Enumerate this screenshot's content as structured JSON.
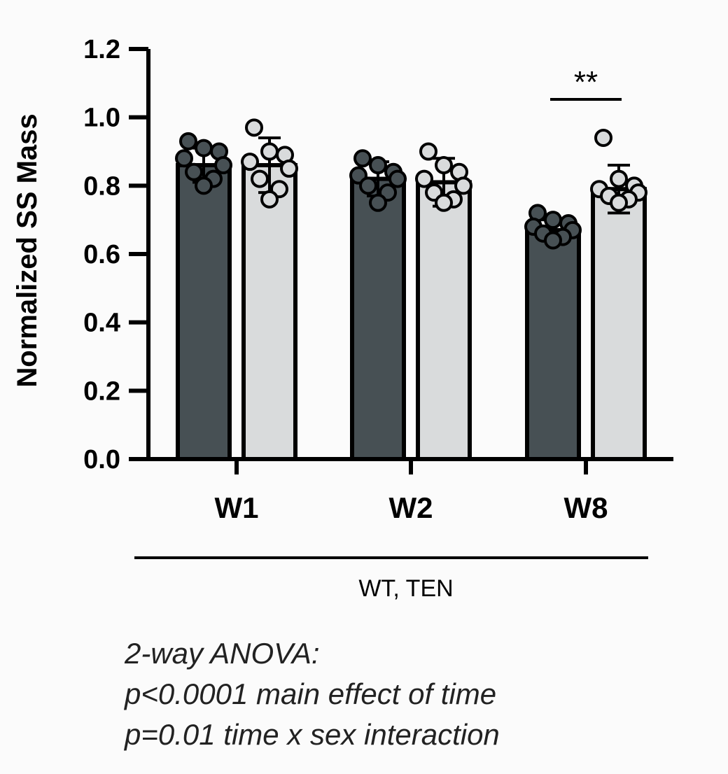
{
  "chart_data": {
    "type": "bar",
    "ylabel": "Normalized SS Mass",
    "xlabel": "",
    "ylim": [
      0,
      1.2
    ],
    "yticks": [
      "0.0",
      "0.2",
      "0.4",
      "0.6",
      "0.8",
      "1.0",
      "1.2"
    ],
    "categories": [
      "W1",
      "W2",
      "W8"
    ],
    "group_label": "WT, TEN",
    "colors": {
      "dark": "#475054",
      "light": "#d9dbdc"
    },
    "series": [
      {
        "name": "dark",
        "values": [
          0.86,
          0.82,
          0.67
        ],
        "error": [
          0.05,
          0.05,
          0.03
        ],
        "points": [
          [
            0.93,
            0.91,
            0.9,
            0.88,
            0.86,
            0.84,
            0.82,
            0.8
          ],
          [
            0.88,
            0.86,
            0.84,
            0.83,
            0.82,
            0.8,
            0.78,
            0.75
          ],
          [
            0.72,
            0.7,
            0.69,
            0.68,
            0.67,
            0.66,
            0.65,
            0.64
          ]
        ]
      },
      {
        "name": "light",
        "values": [
          0.86,
          0.81,
          0.79
        ],
        "error": [
          0.08,
          0.07,
          0.07
        ],
        "points": [
          [
            0.97,
            0.9,
            0.89,
            0.87,
            0.85,
            0.82,
            0.79,
            0.76
          ],
          [
            0.9,
            0.86,
            0.84,
            0.82,
            0.8,
            0.78,
            0.76,
            0.75
          ],
          [
            0.94,
            0.82,
            0.8,
            0.79,
            0.78,
            0.77,
            0.76,
            0.75
          ]
        ]
      }
    ],
    "annotations": [
      {
        "category": "W8",
        "text": "**"
      }
    ]
  },
  "stats_text": [
    "2-way ANOVA:",
    "p<0.0001 main effect of time",
    "p=0.01 time x sex interaction"
  ]
}
